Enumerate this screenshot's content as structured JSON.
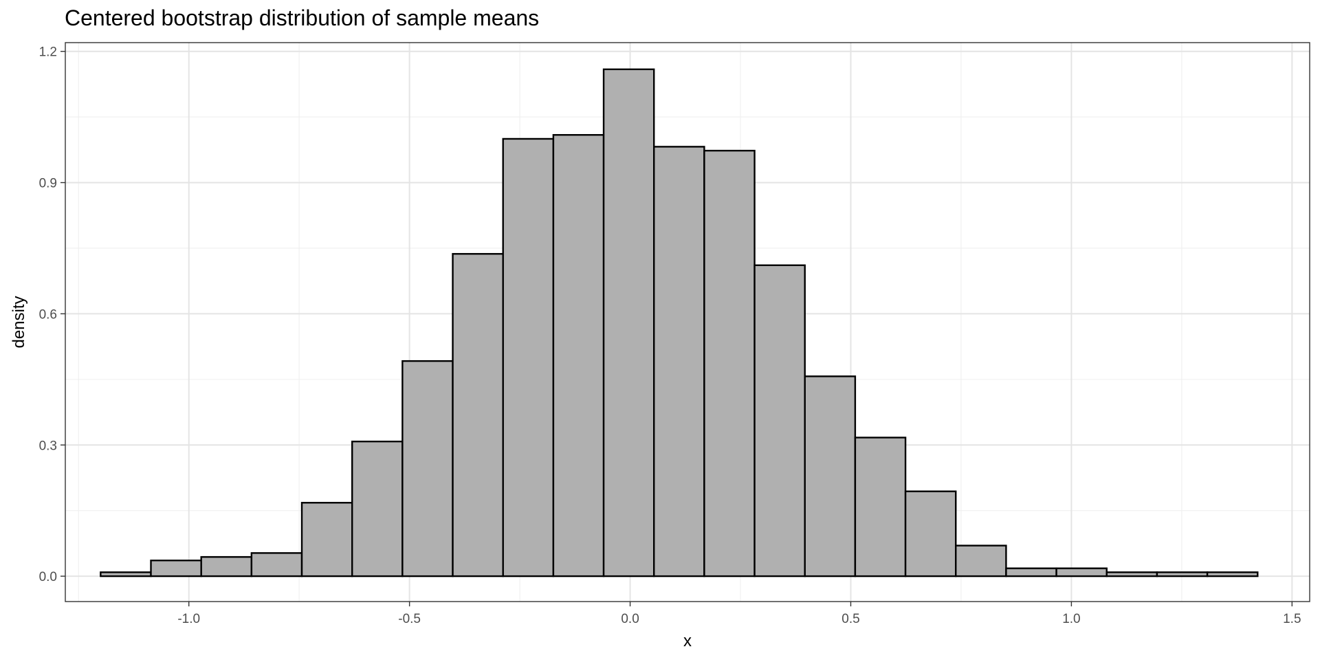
{
  "chart_data": {
    "type": "bar",
    "title": "Centered bootstrap distribution of sample means",
    "xlabel": "x",
    "ylabel": "density",
    "xlim": [
      -1.28,
      1.54
    ],
    "ylim": [
      -0.058,
      1.22
    ],
    "x_ticks": [
      -1.0,
      -0.5,
      0.0,
      0.5,
      1.0,
      1.5
    ],
    "x_tick_labels": [
      "-1.0",
      "-0.5",
      "0.0",
      "0.5",
      "1.0",
      "1.5"
    ],
    "y_ticks": [
      0.0,
      0.3,
      0.6,
      0.9,
      1.2
    ],
    "y_tick_labels": [
      "0.0",
      "0.3",
      "0.6",
      "0.9",
      "1.2"
    ],
    "grid": true,
    "bar_fill": "#b0b0b0",
    "bar_outline": "#000000",
    "bins": [
      {
        "x0": -1.2,
        "x1": -1.086,
        "density": 0.009
      },
      {
        "x0": -1.086,
        "x1": -0.972,
        "density": 0.036
      },
      {
        "x0": -0.972,
        "x1": -0.858,
        "density": 0.044
      },
      {
        "x0": -0.858,
        "x1": -0.744,
        "density": 0.053
      },
      {
        "x0": -0.744,
        "x1": -0.63,
        "density": 0.168
      },
      {
        "x0": -0.63,
        "x1": -0.516,
        "density": 0.308
      },
      {
        "x0": -0.516,
        "x1": -0.402,
        "density": 0.492
      },
      {
        "x0": -0.402,
        "x1": -0.288,
        "density": 0.737
      },
      {
        "x0": -0.288,
        "x1": -0.174,
        "density": 1.0
      },
      {
        "x0": -0.174,
        "x1": -0.06,
        "density": 1.009
      },
      {
        "x0": -0.06,
        "x1": 0.054,
        "density": 1.159
      },
      {
        "x0": 0.054,
        "x1": 0.168,
        "density": 0.982
      },
      {
        "x0": 0.168,
        "x1": 0.282,
        "density": 0.973
      },
      {
        "x0": 0.282,
        "x1": 0.396,
        "density": 0.711
      },
      {
        "x0": 0.396,
        "x1": 0.51,
        "density": 0.457
      },
      {
        "x0": 0.51,
        "x1": 0.624,
        "density": 0.317
      },
      {
        "x0": 0.624,
        "x1": 0.738,
        "density": 0.194
      },
      {
        "x0": 0.738,
        "x1": 0.852,
        "density": 0.07
      },
      {
        "x0": 0.852,
        "x1": 0.966,
        "density": 0.018
      },
      {
        "x0": 0.966,
        "x1": 1.08,
        "density": 0.018
      },
      {
        "x0": 1.08,
        "x1": 1.194,
        "density": 0.009
      },
      {
        "x0": 1.194,
        "x1": 1.308,
        "density": 0.009
      },
      {
        "x0": 1.308,
        "x1": 1.422,
        "density": 0.009
      }
    ]
  }
}
